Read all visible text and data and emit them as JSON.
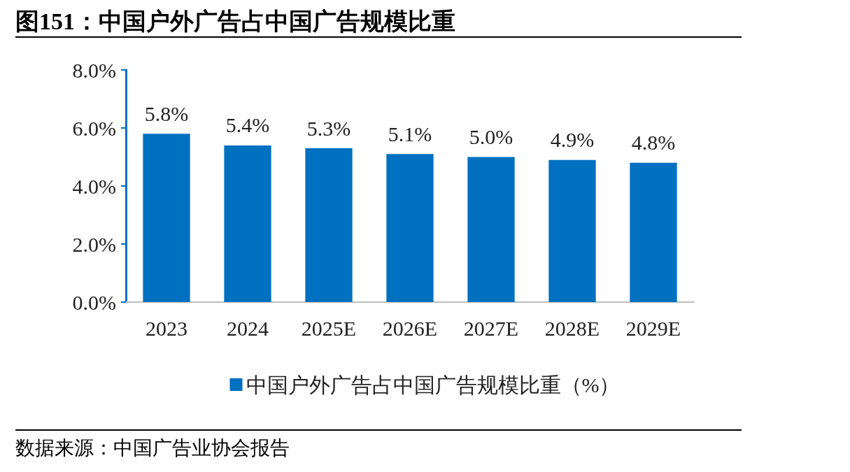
{
  "chart_data": {
    "type": "bar",
    "title": "图151：中国户外广告占中国广告规模比重",
    "categories": [
      "2023",
      "2024",
      "2025E",
      "2026E",
      "2027E",
      "2028E",
      "2029E"
    ],
    "series": [
      {
        "name": "中国户外广告占中国广告规模比重（%）",
        "color": "#0070c0",
        "values": [
          5.8,
          5.4,
          5.3,
          5.1,
          5.0,
          4.9,
          4.8
        ],
        "value_labels": [
          "5.8%",
          "5.4%",
          "5.3%",
          "5.1%",
          "5.0%",
          "4.9%",
          "4.8%"
        ]
      }
    ],
    "ylim": [
      0,
      8
    ],
    "yticks": [
      {
        "value": 0,
        "label": "0.0%"
      },
      {
        "value": 2,
        "label": "2.0%"
      },
      {
        "value": 4,
        "label": "4.0%"
      },
      {
        "value": 6,
        "label": "6.0%"
      },
      {
        "value": 8,
        "label": "8.0%"
      }
    ],
    "grid": false,
    "legend": "bottom",
    "annotations": [
      "数据来源：中国广告业协会报告"
    ]
  }
}
